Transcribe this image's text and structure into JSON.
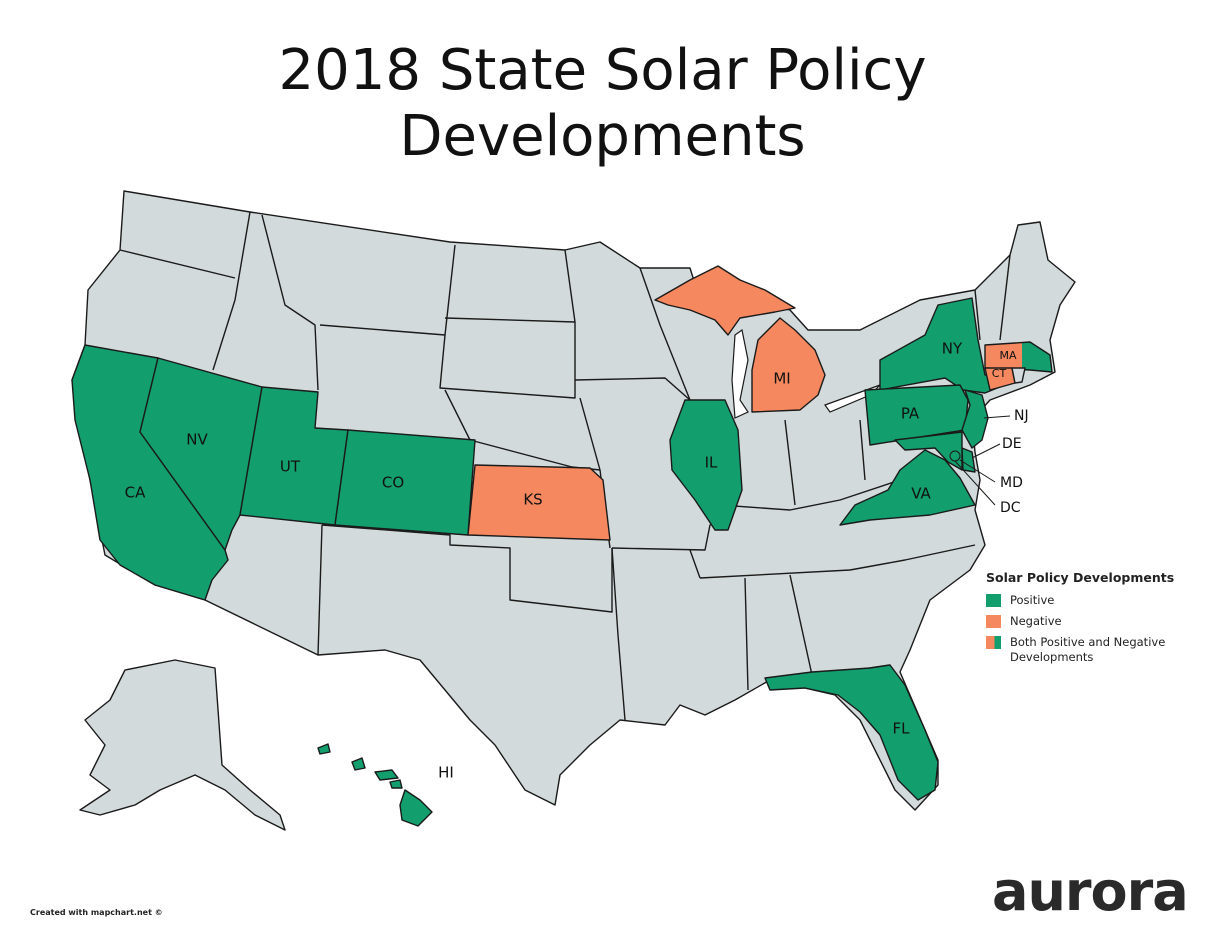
{
  "title": "2018 State Solar Policy\nDevelopments",
  "colors": {
    "positive": "#139e6e",
    "negative": "#f5885e",
    "neutral": "#d3dadb",
    "border": "#1a1a1a"
  },
  "states": [
    {
      "id": "CA",
      "label": "CA",
      "status": "positive"
    },
    {
      "id": "NV",
      "label": "NV",
      "status": "positive"
    },
    {
      "id": "UT",
      "label": "UT",
      "status": "positive"
    },
    {
      "id": "CO",
      "label": "CO",
      "status": "positive"
    },
    {
      "id": "KS",
      "label": "KS",
      "status": "negative"
    },
    {
      "id": "IL",
      "label": "IL",
      "status": "positive"
    },
    {
      "id": "MI",
      "label": "MI",
      "status": "negative"
    },
    {
      "id": "NY",
      "label": "NY",
      "status": "positive"
    },
    {
      "id": "PA",
      "label": "PA",
      "status": "positive"
    },
    {
      "id": "VA",
      "label": "VA",
      "status": "positive"
    },
    {
      "id": "FL",
      "label": "FL",
      "status": "positive"
    },
    {
      "id": "MA",
      "label": "MA",
      "status": "both"
    },
    {
      "id": "CT",
      "label": "CT",
      "status": "negative"
    },
    {
      "id": "NJ",
      "label": "NJ",
      "status": "positive"
    },
    {
      "id": "DE",
      "label": "DE",
      "status": "positive"
    },
    {
      "id": "MD",
      "label": "MD",
      "status": "positive"
    },
    {
      "id": "DC",
      "label": "DC",
      "status": "positive"
    },
    {
      "id": "HI",
      "label": "HI",
      "status": "positive"
    }
  ],
  "legend": {
    "title": "Solar Policy Developments",
    "items": [
      {
        "label": "Positive",
        "status": "positive"
      },
      {
        "label": "Negative",
        "status": "negative"
      },
      {
        "label": "Both Positive and Negative Developments",
        "status": "both"
      }
    ]
  },
  "credit": "Created with mapchart.net ©",
  "logo": "aurora"
}
